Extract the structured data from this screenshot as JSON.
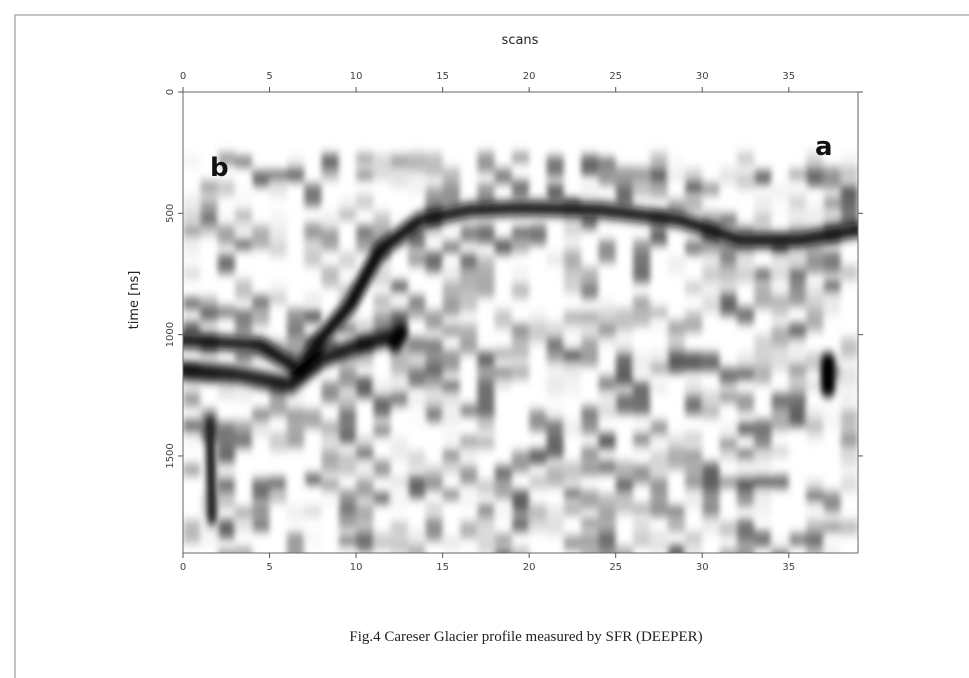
{
  "chart_data": {
    "type": "heatmap",
    "xlabel": "scans",
    "ylabel": "time [ns]",
    "xlim": [
      0,
      39
    ],
    "xticks": [
      0,
      5,
      10,
      15,
      20,
      25,
      30,
      35
    ],
    "ylim": [
      0,
      1900
    ],
    "yticks": [
      0,
      500,
      1000,
      1500
    ],
    "annotations": [
      "b",
      "a"
    ],
    "caption": "Fig.4 Careser Glacier profile measured by SFR (DEEPER)"
  }
}
